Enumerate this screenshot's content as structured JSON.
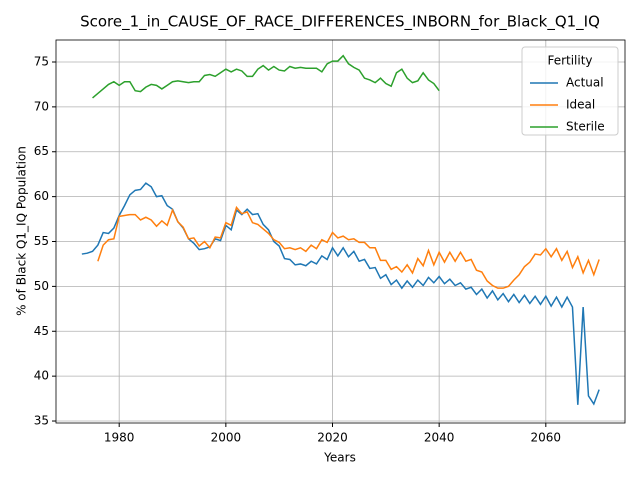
{
  "chart_data": {
    "type": "line",
    "title": "Score_1_in_CAUSE_OF_RACE_DIFFERENCES_INBORN_for_Black_Q1_IQ",
    "xlabel": "Years",
    "ylabel": "% of Black Q1_IQ Population",
    "legend_title": "Fertility",
    "legend": "upper right",
    "grid": true,
    "x": [
      1973,
      1974,
      1975,
      1976,
      1977,
      1978,
      1979,
      1980,
      1981,
      1982,
      1983,
      1984,
      1985,
      1986,
      1987,
      1988,
      1989,
      1990,
      1991,
      1992,
      1993,
      1994,
      1995,
      1996,
      1997,
      1998,
      1999,
      2000,
      2001,
      2002,
      2003,
      2004,
      2005,
      2006,
      2007,
      2008,
      2009,
      2010,
      2011,
      2012,
      2013,
      2014,
      2015,
      2016,
      2017,
      2018,
      2019,
      2020,
      2021,
      2022,
      2023,
      2024,
      2025,
      2026,
      2027,
      2028,
      2029,
      2030,
      2031,
      2032,
      2033,
      2034,
      2035,
      2036,
      2037,
      2038,
      2039,
      2040,
      2041,
      2042,
      2043,
      2044,
      2045,
      2046,
      2047,
      2048,
      2049,
      2050,
      2051,
      2052,
      2053,
      2054,
      2055,
      2056,
      2057,
      2058,
      2059,
      2060,
      2061,
      2062,
      2063,
      2064,
      2065,
      2066,
      2067,
      2068,
      2069,
      2070
    ],
    "series": [
      {
        "name": "Actual",
        "color": "#1f77b4",
        "values": [
          53.6,
          53.7,
          53.9,
          54.6,
          56.0,
          55.9,
          56.5,
          57.9,
          59.0,
          60.2,
          60.7,
          60.8,
          61.5,
          61.1,
          60.0,
          60.1,
          59.0,
          58.6,
          57.2,
          56.5,
          55.3,
          54.8,
          54.1,
          54.2,
          54.4,
          55.3,
          55.1,
          56.8,
          56.3,
          58.5,
          58.0,
          58.6,
          58.0,
          58.1,
          56.9,
          56.3,
          55.0,
          54.5,
          53.1,
          53.0,
          52.4,
          52.5,
          52.3,
          52.8,
          52.5,
          53.4,
          53.0,
          54.3,
          53.4,
          54.3,
          53.3,
          53.9,
          52.8,
          53.0,
          52.0,
          52.1,
          50.9,
          51.3,
          50.2,
          50.7,
          49.8,
          50.6,
          49.9,
          50.7,
          50.1,
          51.0,
          50.4,
          51.1,
          50.3,
          50.8,
          50.1,
          50.4,
          49.7,
          49.9,
          49.1,
          49.7,
          48.7,
          49.5,
          48.5,
          49.2,
          48.3,
          49.1,
          48.2,
          49.0,
          48.1,
          48.9,
          48.0,
          48.9,
          47.8,
          48.8,
          47.7,
          48.8,
          47.7,
          36.8,
          47.7,
          37.8,
          36.9,
          38.5
        ]
      },
      {
        "name": "Ideal",
        "color": "#ff7f0e",
        "values": [
          null,
          null,
          null,
          52.8,
          54.6,
          55.2,
          55.3,
          57.8,
          57.9,
          58.0,
          58.0,
          57.4,
          57.7,
          57.4,
          56.7,
          57.3,
          56.8,
          58.5,
          57.2,
          56.6,
          55.3,
          55.4,
          54.5,
          55.0,
          54.3,
          55.5,
          55.4,
          57.1,
          56.8,
          58.8,
          58.1,
          58.3,
          57.1,
          56.9,
          56.4,
          55.9,
          55.2,
          54.9,
          54.2,
          54.3,
          54.1,
          54.3,
          53.9,
          54.6,
          54.2,
          55.2,
          54.9,
          56.0,
          55.4,
          55.6,
          55.2,
          55.3,
          54.9,
          54.9,
          54.3,
          54.3,
          52.9,
          52.9,
          51.9,
          52.2,
          51.6,
          52.4,
          51.5,
          53.1,
          52.3,
          54.0,
          52.4,
          53.8,
          52.7,
          53.8,
          52.8,
          53.8,
          52.8,
          53.0,
          51.8,
          51.6,
          50.6,
          50.1,
          49.8,
          49.8,
          50.0,
          50.7,
          51.3,
          52.2,
          52.7,
          53.6,
          53.5,
          54.2,
          53.3,
          54.2,
          52.9,
          53.9,
          52.1,
          53.3,
          51.5,
          52.9,
          51.3,
          53.0
        ]
      },
      {
        "name": "Sterile",
        "color": "#2ca02c",
        "values": [
          null,
          null,
          71.0,
          71.5,
          72.0,
          72.5,
          72.8,
          72.4,
          72.8,
          72.8,
          71.8,
          71.7,
          72.2,
          72.5,
          72.4,
          72.0,
          72.4,
          72.8,
          72.9,
          72.8,
          72.7,
          72.8,
          72.8,
          73.5,
          73.6,
          73.4,
          73.8,
          74.2,
          73.9,
          74.2,
          74.0,
          73.4,
          73.4,
          74.2,
          74.6,
          74.1,
          74.5,
          74.1,
          74.0,
          74.5,
          74.3,
          74.4,
          74.3,
          74.3,
          74.3,
          73.9,
          74.8,
          75.1,
          75.1,
          75.7,
          74.8,
          74.4,
          74.1,
          73.2,
          73.0,
          72.7,
          73.2,
          72.6,
          72.3,
          73.8,
          74.2,
          73.2,
          72.7,
          72.9,
          73.8,
          73.0,
          72.6,
          71.8,
          null,
          null,
          null,
          null,
          null,
          null,
          null,
          null,
          null,
          null,
          null,
          null,
          null,
          null,
          null,
          null,
          null,
          null,
          null,
          null,
          null,
          null,
          null,
          null,
          null,
          null,
          null,
          null,
          null,
          null
        ]
      }
    ],
    "xlim": [
      1968.15,
      2074.85
    ],
    "xticks": [
      1980,
      2000,
      2020,
      2040,
      2060
    ],
    "ylim": [
      34.78,
      77.45
    ],
    "yticks": [
      35,
      40,
      45,
      50,
      55,
      60,
      65,
      70,
      75
    ]
  }
}
